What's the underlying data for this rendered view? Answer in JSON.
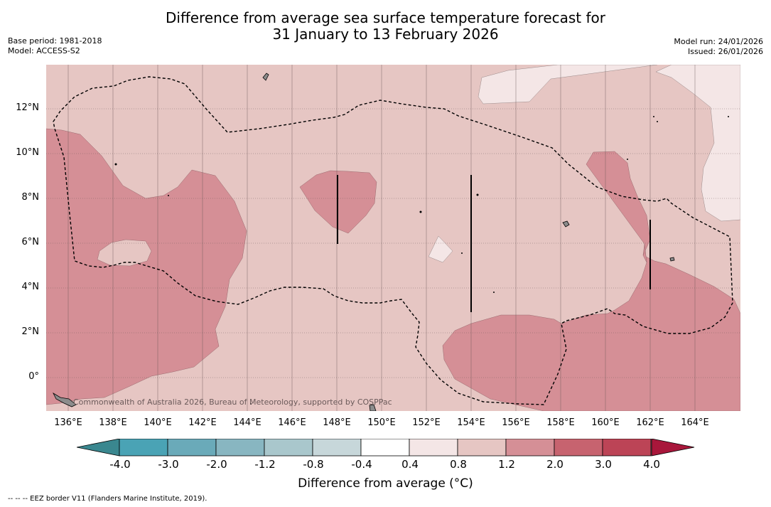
{
  "title": {
    "line1": "Difference from average sea surface temperature forecast for",
    "line2": "31 January to 13 February 2026"
  },
  "meta": {
    "base_period": "Base period: 1981-2018",
    "model": "Model: ACCESS-S2",
    "model_run": "Model run: 24/01/2026",
    "issued": "Issued: 26/01/2026"
  },
  "map": {
    "copyright": "Commonwealth of Australia 2026, Bureau of Meteorology, supported by COSPPac",
    "lat_labels": [
      "12°N",
      "10°N",
      "8°N",
      "6°N",
      "4°N",
      "2°N",
      "0°"
    ],
    "lon_labels": [
      "136°E",
      "138°E",
      "140°E",
      "142°E",
      "144°E",
      "146°E",
      "148°E",
      "150°E",
      "152°E",
      "154°E",
      "156°E",
      "158°E",
      "160°E",
      "162°E",
      "164°E"
    ],
    "colors": {
      "c_0_4_0_8": "#f4e6e6",
      "c_0_8_1_2": "#e6c6c3",
      "c_1_2_2_0": "#d58f96",
      "land": "#8c8c8c"
    }
  },
  "colorbar": {
    "ticks": [
      "-4.0",
      "-3.0",
      "-2.0",
      "-1.2",
      "-0.8",
      "-0.4",
      "0.4",
      "0.8",
      "1.2",
      "2.0",
      "3.0",
      "4.0"
    ],
    "colors": [
      "#3a878f",
      "#4aa3b5",
      "#6aaab9",
      "#88b6c1",
      "#a9c7cc",
      "#c7d7da",
      "#ffffff",
      "#f4e6e6",
      "#e6c6c3",
      "#d58f96",
      "#c7636f",
      "#bc4456",
      "#a8173b"
    ],
    "label": "Difference from average (°C)"
  },
  "footnote": "-- -- -- EEZ border V11 (Flanders Marine Institute, 2019)."
}
